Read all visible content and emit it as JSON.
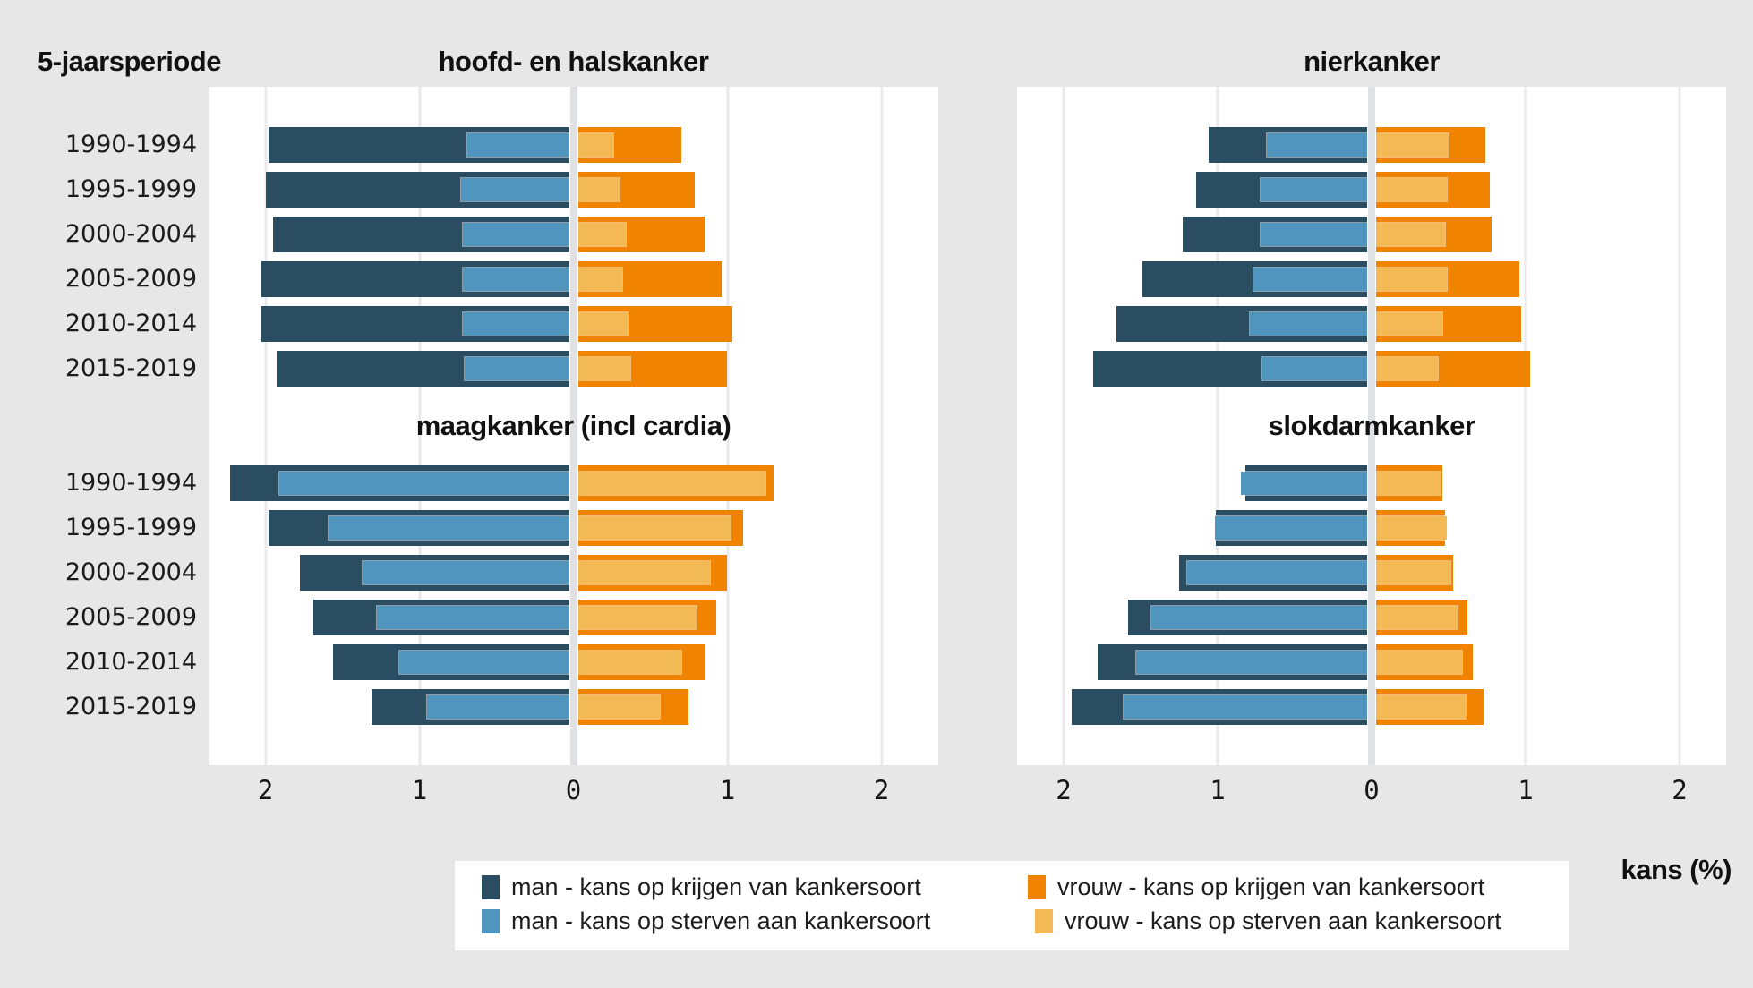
{
  "page": {
    "period_axis_label": "5-jaarsperiode",
    "x_axis_label": "kans (%)",
    "x_ticks": [
      "2",
      "1",
      "0",
      "1",
      "2"
    ]
  },
  "legend": {
    "items": [
      {
        "key": "man_krijgen",
        "label": "man - kans op krijgen van kankersoort",
        "color": "#2a4d61"
      },
      {
        "key": "man_sterven",
        "label": "man - kans op sterven aan kankersoort",
        "color": "#4f95be"
      },
      {
        "key": "vrouw_krijgen",
        "label": "vrouw - kans op krijgen van kankersoort",
        "color": "#f08300"
      },
      {
        "key": "vrouw_sterven",
        "label": "vrouw - kans op sterven aan kankersoort",
        "color": "#f3b954"
      }
    ]
  },
  "colors": {
    "page_background": "#e7e7e7",
    "panel_background": "#ffffff",
    "gridline": "#e9e9eb",
    "zero_line": "#dfe1e5"
  },
  "chart_data": {
    "type": "bar",
    "orientation": "diverging-horizontal",
    "unit_label": "kans (%)",
    "xlim": [
      -2.4,
      2.4
    ],
    "x_tick_values": [
      2,
      1,
      0,
      1,
      2
    ],
    "grid": true,
    "legend_position": "bottom",
    "categories": [
      "1990-1994",
      "1995-1999",
      "2000-2004",
      "2005-2009",
      "2010-2014",
      "2015-2019"
    ],
    "panels": [
      {
        "title": "hoofd- en halskanker",
        "position": "top-left",
        "series": {
          "man_krijgen": [
            1.95,
            1.97,
            1.92,
            2.0,
            2.0,
            1.9
          ],
          "man_sterven": [
            0.66,
            0.7,
            0.69,
            0.69,
            0.69,
            0.68
          ],
          "vrouw_krijgen": [
            0.67,
            0.76,
            0.82,
            0.93,
            1.0,
            0.97
          ],
          "vrouw_sterven": [
            0.23,
            0.27,
            0.31,
            0.29,
            0.32,
            0.34
          ]
        }
      },
      {
        "title": "nierkanker",
        "position": "top-right",
        "series": {
          "man_krijgen": [
            1.03,
            1.11,
            1.2,
            1.46,
            1.63,
            1.78
          ],
          "man_sterven": [
            0.65,
            0.69,
            0.69,
            0.74,
            0.76,
            0.68
          ],
          "vrouw_krijgen": [
            0.71,
            0.74,
            0.75,
            0.93,
            0.94,
            1.0
          ],
          "vrouw_sterven": [
            0.47,
            0.46,
            0.45,
            0.46,
            0.43,
            0.4
          ]
        }
      },
      {
        "title": "maagkanker (incl cardia)",
        "position": "bottom-left",
        "series": {
          "man_krijgen": [
            2.2,
            1.95,
            1.75,
            1.66,
            1.53,
            1.28
          ],
          "man_sterven": [
            1.88,
            1.56,
            1.34,
            1.25,
            1.1,
            0.92
          ],
          "vrouw_krijgen": [
            1.27,
            1.07,
            0.97,
            0.9,
            0.83,
            0.72
          ],
          "vrouw_sterven": [
            1.22,
            0.99,
            0.86,
            0.77,
            0.67,
            0.53
          ]
        }
      },
      {
        "title": "slokdarmkanker",
        "position": "bottom-right",
        "series": {
          "man_krijgen": [
            0.79,
            0.98,
            1.22,
            1.55,
            1.75,
            1.92
          ],
          "man_sterven": [
            0.82,
            0.99,
            1.17,
            1.4,
            1.5,
            1.58
          ],
          "vrouw_krijgen": [
            0.43,
            0.45,
            0.5,
            0.59,
            0.63,
            0.7
          ],
          "vrouw_sterven": [
            0.42,
            0.46,
            0.48,
            0.53,
            0.56,
            0.58
          ]
        }
      }
    ]
  }
}
